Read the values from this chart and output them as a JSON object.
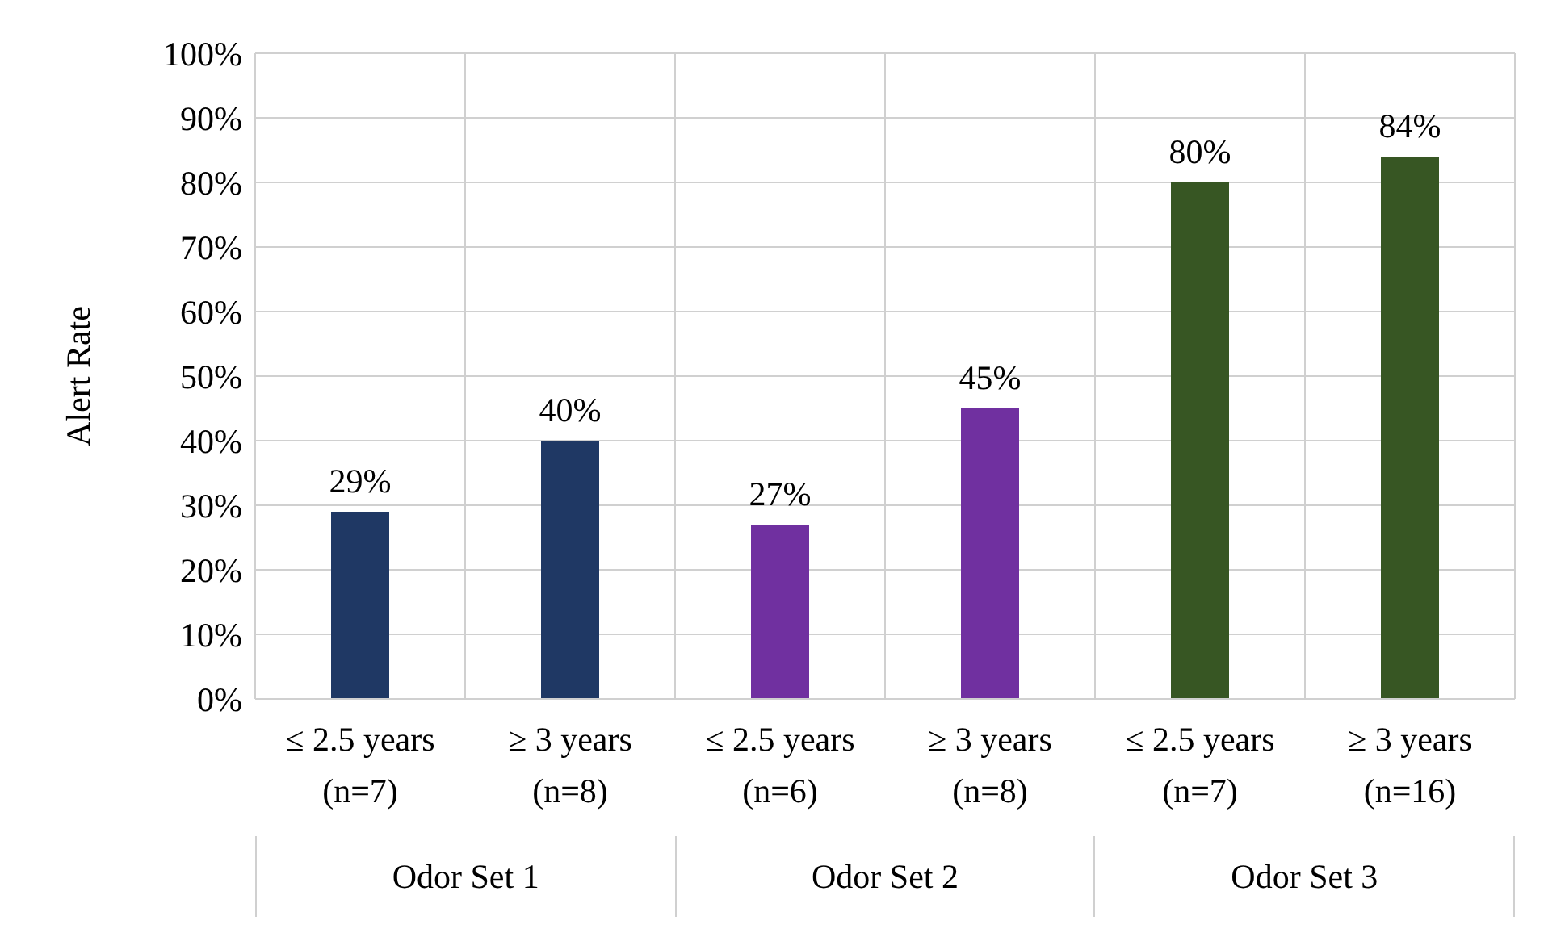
{
  "chart_data": {
    "type": "bar",
    "ylabel": "Alert Rate",
    "categories": [
      "≤ 2.5 years\n(n=7)",
      "≥ 3 years\n(n=8)",
      "≤ 2.5 years\n(n=6)",
      "≥ 3 years\n(n=8)",
      "≤ 2.5 years\n(n=7)",
      "≥ 3 years\n(n=16)"
    ],
    "values": [
      29,
      40,
      27,
      45,
      80,
      84
    ],
    "value_labels": [
      "29%",
      "40%",
      "27%",
      "45%",
      "80%",
      "84%"
    ],
    "colors": [
      "#1f3864",
      "#1f3864",
      "#7030a0",
      "#7030a0",
      "#375623",
      "#375623"
    ],
    "ylim": [
      0,
      100
    ],
    "yticks": [
      {
        "value": 0,
        "label": "0%"
      },
      {
        "value": 10,
        "label": "10%"
      },
      {
        "value": 20,
        "label": "20%"
      },
      {
        "value": 30,
        "label": "30%"
      },
      {
        "value": 40,
        "label": "40%"
      },
      {
        "value": 50,
        "label": "50%"
      },
      {
        "value": 60,
        "label": "60%"
      },
      {
        "value": 70,
        "label": "70%"
      },
      {
        "value": 80,
        "label": "80%"
      },
      {
        "value": 90,
        "label": "90%"
      },
      {
        "value": 100,
        "label": "100%"
      }
    ],
    "annotations": [
      "Odor Set 1",
      "Odor Set 2",
      "Odor Set 3"
    ],
    "grid": true
  }
}
